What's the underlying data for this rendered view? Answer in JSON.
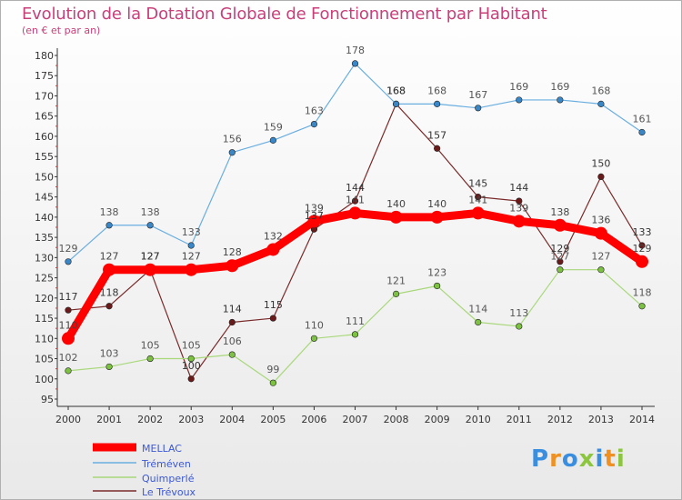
{
  "title": "Evolution de la Dotation Globale de Fonctionnement par Habitant",
  "subtitle": "(en € et par an)",
  "logo_text": "Proxiti",
  "chart_data": {
    "type": "line",
    "x": [
      2000,
      2001,
      2002,
      2003,
      2004,
      2005,
      2006,
      2007,
      2008,
      2009,
      2010,
      2011,
      2012,
      2013,
      2014
    ],
    "ylim": [
      95,
      180
    ],
    "yticks": [
      95,
      100,
      105,
      110,
      115,
      120,
      125,
      130,
      135,
      140,
      145,
      150,
      155,
      160,
      165,
      170,
      175,
      180
    ],
    "grid": false,
    "legend_position": "bottom-left",
    "series": [
      {
        "name": "MELLAC",
        "color": "#ff0000",
        "line_color": "#ff0000",
        "values": [
          110,
          127,
          127,
          127,
          128,
          132,
          139,
          141,
          140,
          140,
          141,
          139,
          138,
          136,
          129
        ]
      },
      {
        "name": "Tréméven",
        "color": "#3a87c8",
        "line_color": "#6aaee0",
        "values": [
          129,
          138,
          138,
          133,
          156,
          159,
          163,
          178,
          168,
          168,
          167,
          169,
          169,
          168,
          161
        ]
      },
      {
        "name": "Quimperlé",
        "color": "#7cc142",
        "line_color": "#a8d87a",
        "values": [
          102,
          103,
          105,
          105,
          106,
          99,
          110,
          111,
          121,
          123,
          114,
          113,
          127,
          127,
          118
        ]
      },
      {
        "name": "Le Trévoux",
        "color": "#6b1a1a",
        "line_color": "#7a2a2a",
        "values": [
          117,
          118,
          127,
          100,
          114,
          115,
          137,
          144,
          168,
          157,
          145,
          144,
          129,
          150,
          133
        ]
      }
    ]
  }
}
